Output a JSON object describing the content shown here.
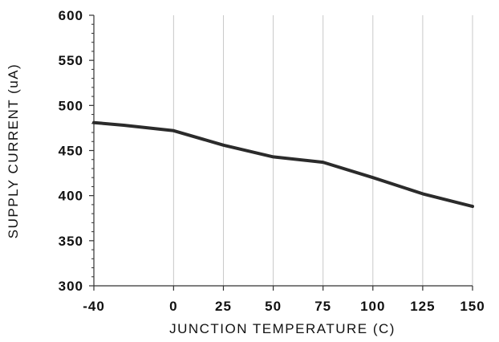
{
  "chart_data": {
    "type": "line",
    "xlabel": "JUNCTION TEMPERATURE (C)",
    "ylabel": "SUPPLY CURRENT (uA)",
    "x_ticks": [
      -40,
      0,
      25,
      50,
      75,
      100,
      125,
      150
    ],
    "y_ticks": [
      300,
      350,
      400,
      450,
      500,
      550,
      600
    ],
    "xlim": [
      -40,
      150
    ],
    "ylim": [
      300,
      600
    ],
    "grid": {
      "vertical": true,
      "horizontal": false
    },
    "colors": {
      "line": "#2b2b2b",
      "grid": "#c8c8c8",
      "axis": "#333333"
    },
    "series": [
      {
        "x": [
          -40,
          -25,
          0,
          25,
          50,
          75,
          100,
          125,
          150
        ],
        "values": [
          481,
          478,
          472,
          456,
          443,
          437,
          420,
          402,
          388
        ]
      }
    ]
  }
}
